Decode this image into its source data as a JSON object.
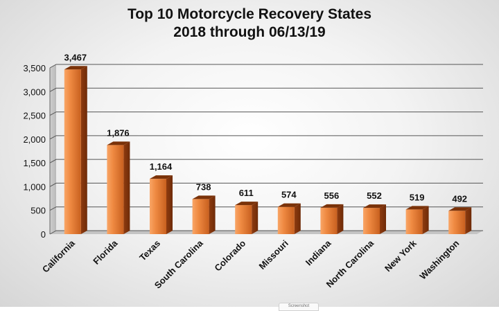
{
  "chart_data": {
    "type": "bar",
    "title": "Top 10 Motorcycle Recovery States",
    "subtitle": "2018 through 06/13/19",
    "categories": [
      "California",
      "Florida",
      "Texas",
      "South Carolina",
      "Colorado",
      "Missouri",
      "Indiana",
      "North Carolina",
      "New York",
      "Washington"
    ],
    "values": [
      3467,
      1876,
      1164,
      738,
      611,
      574,
      556,
      552,
      519,
      492
    ],
    "data_labels": [
      "3,467",
      "1,876",
      "1,164",
      "738",
      "611",
      "574",
      "556",
      "552",
      "519",
      "492"
    ],
    "ylim": [
      0,
      3500
    ],
    "yticks": [
      0,
      500,
      1000,
      1500,
      2000,
      2500,
      3000,
      3500
    ],
    "ytick_labels": [
      "0",
      "500",
      "1,000",
      "1,500",
      "2,000",
      "2,500",
      "3,000",
      "3,500"
    ],
    "xlabel": "",
    "ylabel": "",
    "grid": true,
    "legend": "none",
    "bar_color": "#e8843f",
    "bar_style": "3d"
  },
  "footer_tab": {
    "label": "Screenshot"
  }
}
